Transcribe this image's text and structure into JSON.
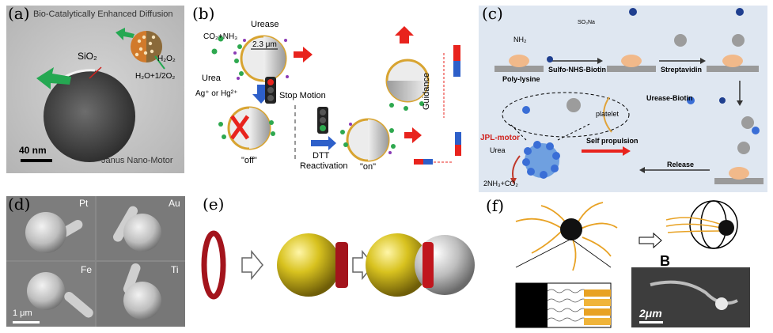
{
  "panels": {
    "a": {
      "label": "(a)",
      "title": "Bio-Catalytically Enhanced Diffusion",
      "sio2": "SiO₂",
      "h2o2": "H₂O₂",
      "h2o": "H₂O+1/2O₂",
      "scale": "40 nm",
      "caption": "Janus Nano-Motor"
    },
    "b": {
      "label": "(b)",
      "urease": "Urease",
      "co2": "CO₂+NH₃",
      "size": "2.3 μm",
      "urea": "Urea",
      "ions": "Ag⁺ or Hg²⁺",
      "stop": "Stop Motion",
      "off": "\"off\"",
      "dtt": "DTT",
      "reactivation": "Reactivation",
      "on": "\"on\"",
      "guidance": "Guidance"
    },
    "c": {
      "label": "(c)",
      "polylysine": "Poly-lysine",
      "nh2": "NH₂",
      "sulfo": "Sulfo-NHS-Biotin",
      "so3na": "SO₃Na",
      "streptavidin": "Streptavidin",
      "ureasebiotin": "Urease-Biotin",
      "platelet": "platelet",
      "jpl": "JPL-motor",
      "urea": "Urea",
      "products": "2NH₃+CO₂",
      "selfprop": "Self propulsion",
      "release": "Release"
    },
    "d": {
      "label": "(d)",
      "pt": "Pt",
      "au": "Au",
      "fe": "Fe",
      "ti": "Ti",
      "scale": "1 μm"
    },
    "e": {
      "label": "(e)"
    },
    "f": {
      "label": "(f)",
      "b": "B",
      "scale": "2μm"
    }
  },
  "colors": {
    "enzyme_orange": "#e0a33a",
    "sphere_gold": "#c9b21b",
    "ring_red": "#a3141c",
    "arrow_red": "#e8231d",
    "arrow_blue": "#2d5fc9",
    "arrow_green": "#25a852",
    "panel_c_bg": "#dfe7f1"
  }
}
